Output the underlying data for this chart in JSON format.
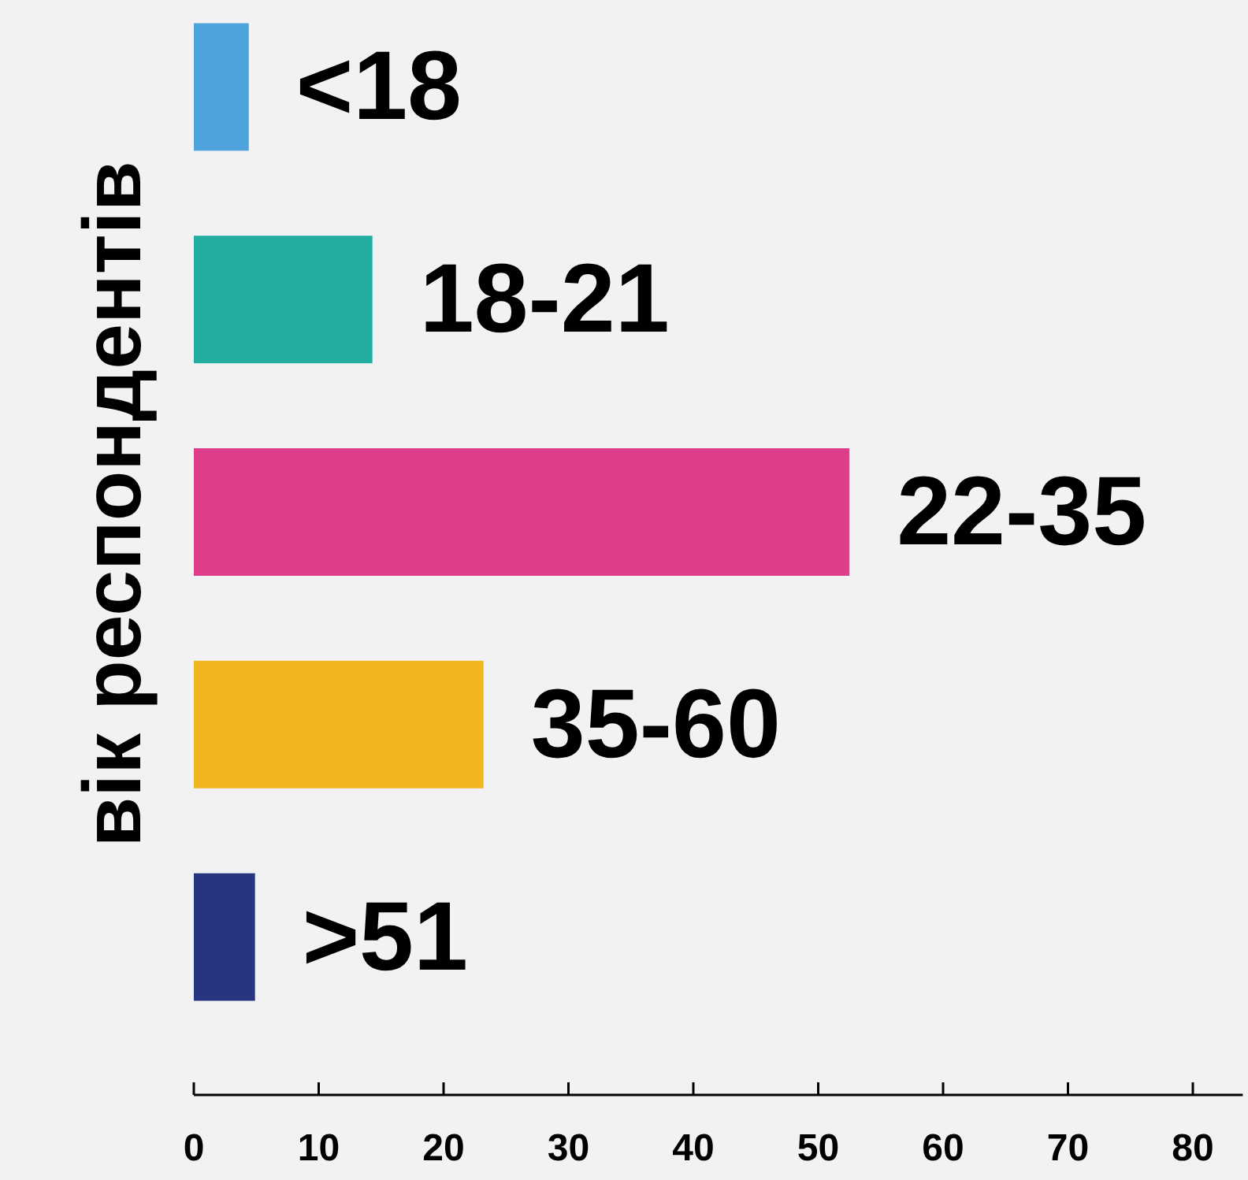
{
  "chart_data": {
    "type": "bar",
    "orientation": "horizontal",
    "ylabel": "вік респондентів",
    "categories": [
      "<18",
      "18-21",
      "22-35",
      "35-60",
      ">51"
    ],
    "values": [
      4.4,
      14.3,
      52.5,
      23.2,
      4.9
    ],
    "colors": [
      "#4ea3dd",
      "#20ada0",
      "#de3d8a",
      "#f0b51f",
      "#27347f"
    ],
    "xlim": [
      0,
      84
    ],
    "xticks": [
      0,
      10,
      20,
      30,
      40,
      50,
      60,
      70,
      80
    ],
    "grid": false
  }
}
